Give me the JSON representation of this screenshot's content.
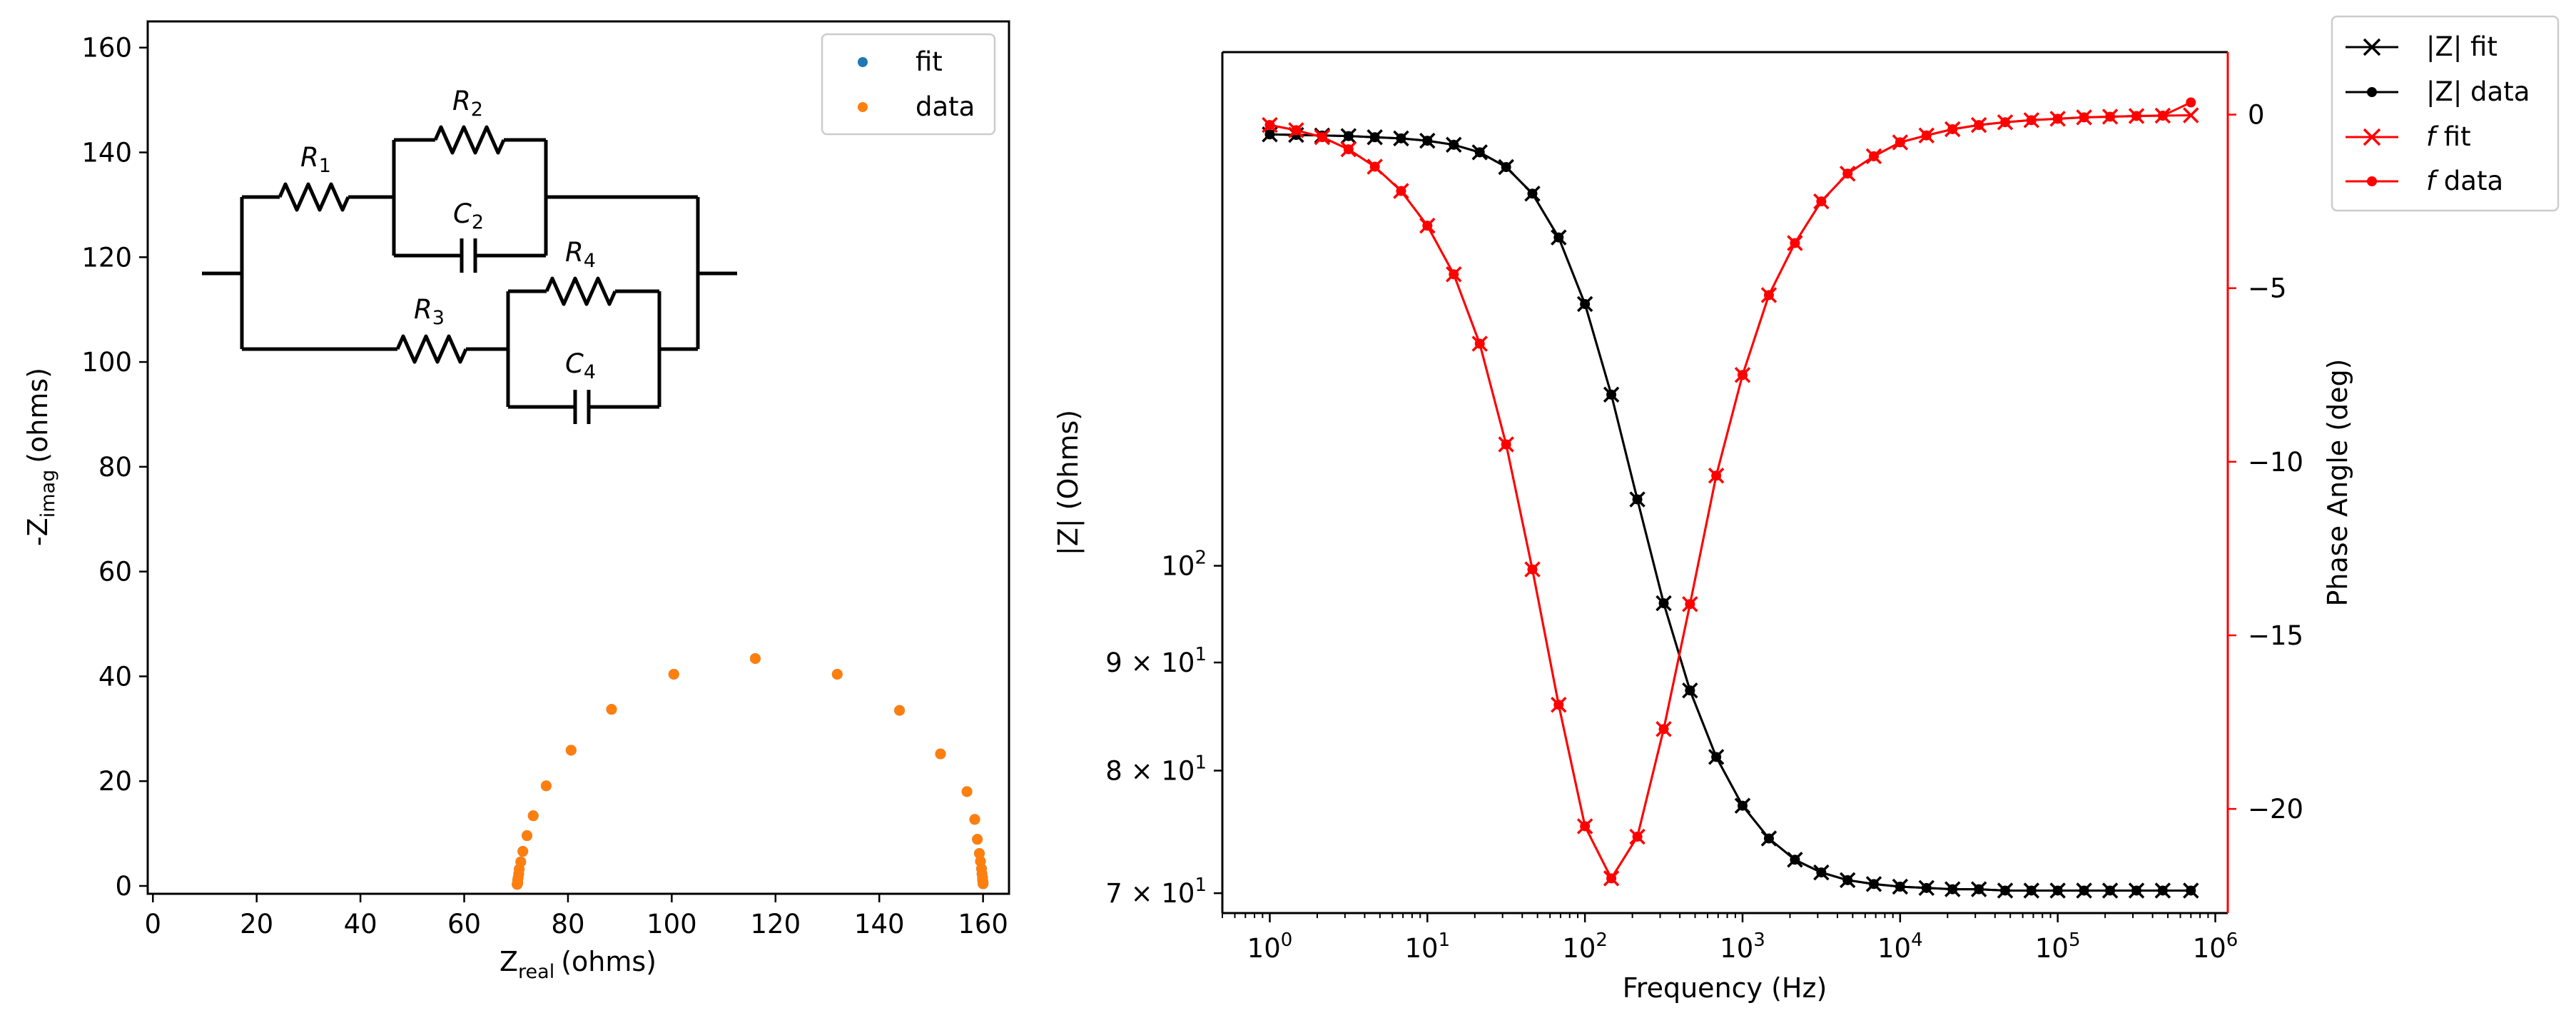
{
  "chart_data": [
    {
      "type": "scatter",
      "xlabel": {
        "base": "Z",
        "sub": "real",
        "unit": "(ohms)"
      },
      "ylabel": {
        "prefix": "-Z",
        "sub": "imag",
        "unit": "(ohms)"
      },
      "xlim": [
        -1,
        165
      ],
      "ylim": [
        -1.5,
        165
      ],
      "xticks": [
        "0",
        "20",
        "40",
        "60",
        "80",
        "100",
        "120",
        "140",
        "160"
      ],
      "yticks": [
        "0",
        "20",
        "40",
        "60",
        "80",
        "100",
        "120",
        "140",
        "160"
      ],
      "legend": {
        "position": "top-right"
      },
      "series": [
        {
          "name": "fit",
          "color": "#1f77b4",
          "points": [
            [
              160.0,
              0.4
            ],
            [
              160.0,
              0.7
            ],
            [
              159.9,
              1.1
            ],
            [
              159.9,
              1.6
            ],
            [
              159.8,
              2.3
            ],
            [
              159.7,
              3.3
            ],
            [
              159.5,
              4.7
            ],
            [
              159.3,
              6.2
            ],
            [
              158.9,
              8.9
            ],
            [
              158.4,
              12.7
            ],
            [
              156.9,
              18.0
            ],
            [
              151.8,
              25.2
            ],
            [
              143.9,
              33.5
            ],
            [
              131.9,
              40.4
            ],
            [
              116.1,
              43.4
            ],
            [
              100.4,
              40.4
            ],
            [
              88.4,
              33.7
            ],
            [
              80.6,
              25.9
            ],
            [
              75.8,
              19.1
            ],
            [
              73.3,
              13.4
            ],
            [
              72.1,
              9.6
            ],
            [
              71.3,
              6.6
            ],
            [
              70.9,
              4.6
            ],
            [
              70.6,
              3.2
            ],
            [
              70.5,
              2.3
            ],
            [
              70.4,
              1.6
            ],
            [
              70.3,
              1.1
            ],
            [
              70.3,
              0.8
            ],
            [
              70.3,
              0.5
            ],
            [
              70.2,
              0.3
            ]
          ]
        },
        {
          "name": "data",
          "color": "#ff7f0e",
          "points": [
            [
              160.0,
              0.4
            ],
            [
              160.0,
              0.7
            ],
            [
              159.9,
              1.1
            ],
            [
              159.9,
              1.6
            ],
            [
              159.8,
              2.3
            ],
            [
              159.7,
              3.3
            ],
            [
              159.5,
              4.7
            ],
            [
              159.3,
              6.2
            ],
            [
              158.9,
              8.9
            ],
            [
              158.4,
              12.7
            ],
            [
              156.9,
              18.0
            ],
            [
              151.8,
              25.2
            ],
            [
              143.9,
              33.5
            ],
            [
              131.9,
              40.4
            ],
            [
              116.1,
              43.4
            ],
            [
              100.4,
              40.4
            ],
            [
              88.4,
              33.7
            ],
            [
              80.6,
              25.9
            ],
            [
              75.8,
              19.1
            ],
            [
              73.3,
              13.4
            ],
            [
              72.1,
              9.6
            ],
            [
              71.3,
              6.6
            ],
            [
              70.9,
              4.6
            ],
            [
              70.6,
              3.2
            ],
            [
              70.5,
              2.3
            ],
            [
              70.4,
              1.6
            ],
            [
              70.3,
              1.1
            ],
            [
              70.3,
              0.8
            ],
            [
              70.3,
              0.5
            ],
            [
              70.2,
              0.3
            ]
          ]
        }
      ],
      "circuit_labels": {
        "r1": {
          "base": "R",
          "sub": "1"
        },
        "r2": {
          "base": "R",
          "sub": "2"
        },
        "c2": {
          "base": "C",
          "sub": "2"
        },
        "r3": {
          "base": "R",
          "sub": "3"
        },
        "r4": {
          "base": "R",
          "sub": "4"
        },
        "c4": {
          "base": "C",
          "sub": "4"
        }
      }
    },
    {
      "type": "line",
      "xlabel": "Frequency (Hz)",
      "ylabel_left": "|Z| (Ohms)",
      "ylabel_right": "Phase Angle (deg)",
      "xscale": "log",
      "yscale_left": "log",
      "xlim": [
        0.5,
        1200000
      ],
      "ylim_left": [
        68.5,
        175
      ],
      "ylim_right": [
        -23.0,
        1.8
      ],
      "x": [
        1.0,
        1.47,
        2.15,
        3.16,
        4.64,
        6.81,
        10.0,
        14.7,
        21.5,
        31.6,
        46.4,
        68.1,
        100.0,
        147,
        215,
        316,
        464,
        681,
        1000,
        1470,
        2150,
        3160,
        4640,
        6810,
        10000,
        14700,
        21500,
        31600,
        46400,
        68100,
        100000,
        147000,
        215000,
        316000,
        464000,
        700000
      ],
      "xtick_labels": [
        {
          "base": "10",
          "exp": "0"
        },
        {
          "base": "10",
          "exp": "1"
        },
        {
          "base": "10",
          "exp": "2"
        },
        {
          "base": "10",
          "exp": "3"
        },
        {
          "base": "10",
          "exp": "4"
        },
        {
          "base": "10",
          "exp": "5"
        },
        {
          "base": "10",
          "exp": "6"
        }
      ],
      "ytick_labels_left": [
        {
          "value": 100,
          "base": "10",
          "exp": "2"
        },
        {
          "value": 90,
          "base": "9 × 10",
          "exp": "1"
        },
        {
          "value": 80,
          "base": "8 × 10",
          "exp": "1"
        },
        {
          "value": 70,
          "base": "7 × 10",
          "exp": "1"
        }
      ],
      "ytick_labels_right": [
        "0",
        "−5",
        "−10",
        "−15",
        "−20"
      ],
      "yticks_right_values": [
        0,
        -5,
        -10,
        -15,
        -20
      ],
      "legend": {
        "position": "outside top-right"
      },
      "series": [
        {
          "name": "|Z| fit",
          "axis": "left",
          "color": "#000000",
          "marker": "x",
          "values": [
            160.0,
            159.9,
            159.8,
            159.7,
            159.5,
            159.3,
            158.9,
            158.2,
            156.9,
            154.4,
            150.0,
            143.0,
            133.0,
            120.5,
            107.5,
            96.0,
            87.3,
            81.2,
            77.0,
            74.3,
            72.6,
            71.6,
            71.0,
            70.7,
            70.5,
            70.4,
            70.3,
            70.3,
            70.2,
            70.2,
            70.2,
            70.2,
            70.2,
            70.2,
            70.2,
            70.2
          ]
        },
        {
          "name": "|Z| data",
          "axis": "left",
          "color": "#000000",
          "marker": "o",
          "values": [
            160.0,
            159.9,
            159.8,
            159.7,
            159.5,
            159.3,
            158.9,
            158.2,
            156.9,
            154.4,
            150.0,
            143.0,
            133.0,
            120.5,
            107.5,
            96.0,
            87.3,
            81.2,
            77.0,
            74.3,
            72.6,
            71.6,
            71.0,
            70.7,
            70.5,
            70.4,
            70.3,
            70.3,
            70.2,
            70.2,
            70.2,
            70.2,
            70.2,
            70.2,
            70.2,
            70.2
          ]
        },
        {
          "name": "f fit",
          "label": {
            "italic": "f",
            "rest": " fit"
          },
          "axis": "right",
          "color": "#ff0000",
          "marker": "x",
          "values": [
            -0.3,
            -0.45,
            -0.65,
            -1.0,
            -1.5,
            -2.2,
            -3.2,
            -4.6,
            -6.6,
            -9.5,
            -13.1,
            -17.0,
            -20.5,
            -22.0,
            -20.8,
            -17.7,
            -14.1,
            -10.4,
            -7.5,
            -5.2,
            -3.7,
            -2.5,
            -1.7,
            -1.2,
            -0.8,
            -0.6,
            -0.42,
            -0.3,
            -0.22,
            -0.16,
            -0.12,
            -0.08,
            -0.06,
            -0.04,
            -0.03,
            -0.02
          ]
        },
        {
          "name": "f data",
          "label": {
            "italic": "f",
            "rest": " data"
          },
          "axis": "right",
          "color": "#ff0000",
          "marker": "o",
          "values": [
            -0.3,
            -0.45,
            -0.65,
            -1.0,
            -1.5,
            -2.2,
            -3.2,
            -4.6,
            -6.6,
            -9.5,
            -13.1,
            -17.0,
            -20.5,
            -22.0,
            -20.8,
            -17.7,
            -14.1,
            -10.4,
            -7.5,
            -5.2,
            -3.7,
            -2.5,
            -1.7,
            -1.2,
            -0.8,
            -0.6,
            -0.42,
            -0.3,
            -0.22,
            -0.16,
            -0.12,
            -0.08,
            -0.06,
            -0.04,
            -0.03,
            0.35
          ]
        }
      ]
    }
  ]
}
